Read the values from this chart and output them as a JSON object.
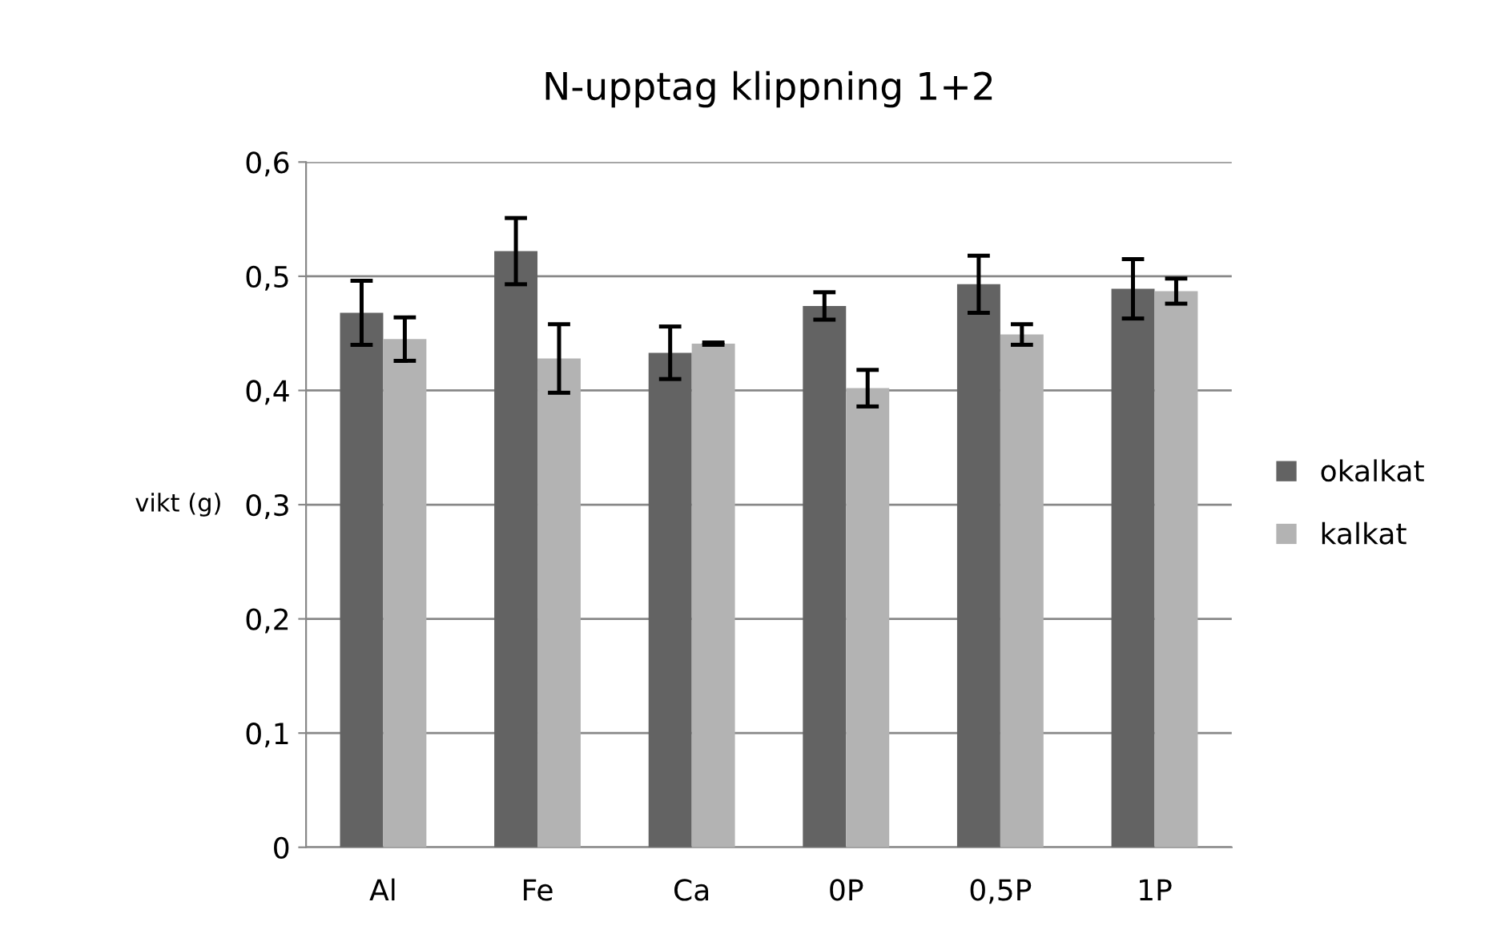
{
  "chart_data": {
    "type": "bar",
    "title": "N-upptag klippning 1+2",
    "ylabel": "vikt (g)",
    "categories": [
      "Al",
      "Fe",
      "Ca",
      "0P",
      "0,5P",
      "1P"
    ],
    "series": [
      {
        "name": "okalkat",
        "color": "#636363",
        "values": [
          0.468,
          0.522,
          0.433,
          0.474,
          0.493,
          0.489
        ],
        "errors": [
          0.028,
          0.029,
          0.023,
          0.012,
          0.025,
          0.026
        ]
      },
      {
        "name": "kalkat",
        "color": "#b3b3b3",
        "values": [
          0.445,
          0.428,
          0.441,
          0.402,
          0.449,
          0.487
        ],
        "errors": [
          0.019,
          0.03,
          0.001,
          0.016,
          0.009,
          0.011
        ]
      }
    ],
    "ylim": [
      0,
      0.6
    ],
    "yticks": [
      {
        "value": 0,
        "label": "0"
      },
      {
        "value": 0.1,
        "label": "0,1"
      },
      {
        "value": 0.2,
        "label": "0,2"
      },
      {
        "value": 0.3,
        "label": "0,3"
      },
      {
        "value": 0.4,
        "label": "0,4"
      },
      {
        "value": 0.5,
        "label": "0,5"
      },
      {
        "value": 0.6,
        "label": "0,6"
      }
    ],
    "grid": "y",
    "legend": "right"
  }
}
